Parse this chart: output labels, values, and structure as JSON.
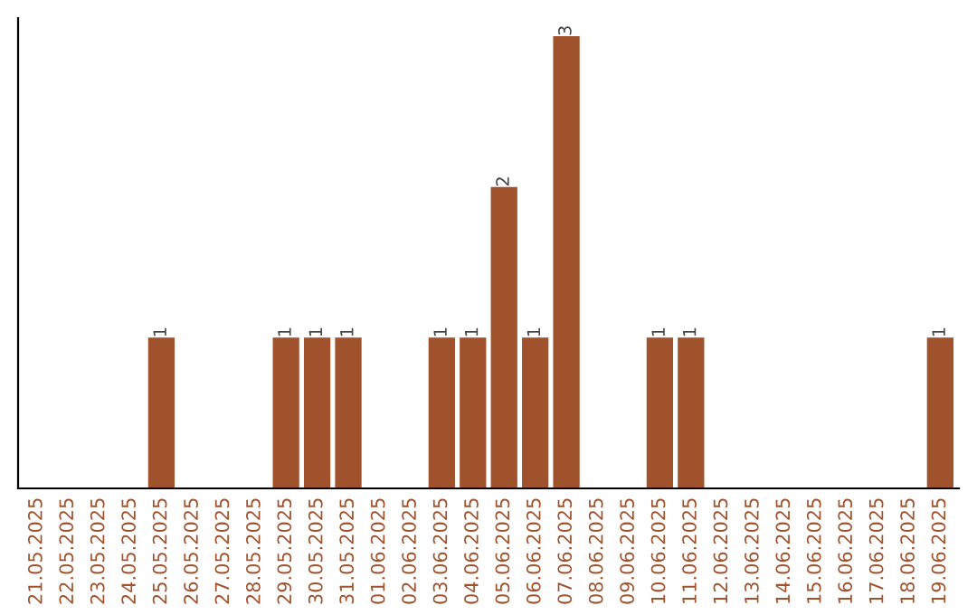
{
  "chart_data": {
    "type": "bar",
    "categories": [
      "21.05.2025",
      "22.05.2025",
      "23.05.2025",
      "24.05.2025",
      "25.05.2025",
      "26.05.2025",
      "27.05.2025",
      "28.05.2025",
      "29.05.2025",
      "30.05.2025",
      "31.05.2025",
      "01.06.2025",
      "02.06.2025",
      "03.06.2025",
      "04.06.2025",
      "05.06.2025",
      "06.06.2025",
      "07.06.2025",
      "08.06.2025",
      "09.06.2025",
      "10.06.2025",
      "11.06.2025",
      "12.06.2025",
      "13.06.2025",
      "14.06.2025",
      "15.06.2025",
      "16.06.2025",
      "17.06.2025",
      "18.06.2025",
      "19.06.2025"
    ],
    "values": [
      0,
      0,
      0,
      0,
      1,
      0,
      0,
      0,
      1,
      1,
      1,
      0,
      0,
      1,
      1,
      2,
      1,
      3,
      0,
      0,
      1,
      1,
      0,
      0,
      0,
      0,
      0,
      0,
      0,
      1
    ],
    "value_labels": [
      null,
      null,
      null,
      null,
      "1",
      null,
      null,
      null,
      "1",
      "1",
      "1",
      null,
      null,
      "1",
      "1",
      "2",
      "1",
      "3",
      null,
      null,
      "1",
      "1",
      null,
      null,
      null,
      null,
      null,
      null,
      null,
      "1"
    ],
    "color": "#a0522d",
    "tick_labels": "x",
    "grid": false,
    "legend": false
  }
}
